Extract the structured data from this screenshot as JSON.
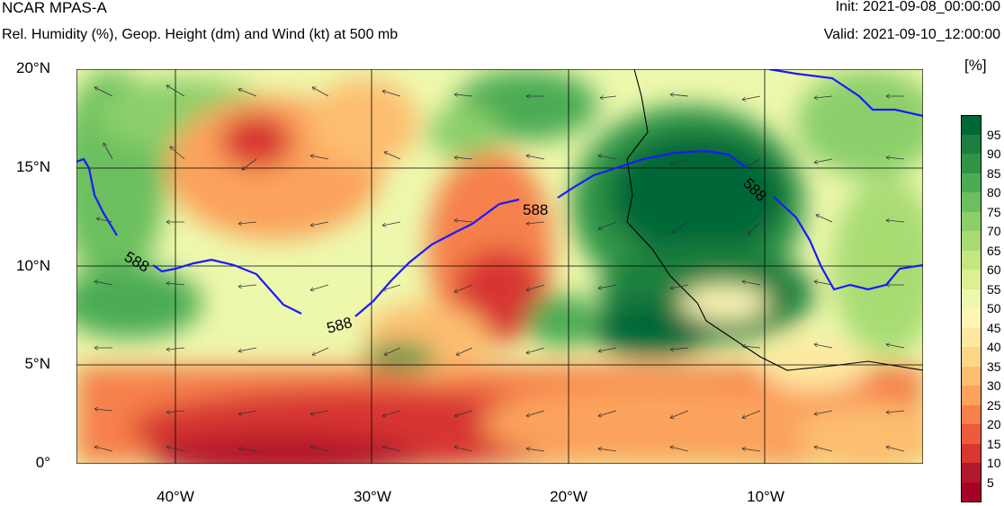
{
  "header": {
    "model": "NCAR MPAS-A",
    "description": "Rel. Humidity (%), Geop. Height (dm) and Wind (kt) at 500 mb",
    "init": "Init: 2021-09-08_00:00:00",
    "valid": "Valid: 2021-09-10_12:00:00"
  },
  "map": {
    "lat_labels": [
      "20°N",
      "15°N",
      "10°N",
      "5°N",
      "0°"
    ],
    "lon_labels": [
      "40°W",
      "30°W",
      "20°W",
      "10°W"
    ],
    "lat_range": [
      0,
      20
    ],
    "lon_range": [
      -45,
      -2
    ],
    "contour_value": "588",
    "contour_labels": [
      "588",
      "588",
      "588",
      "588"
    ],
    "contour_color": "#1a1aff"
  },
  "colorbar": {
    "unit": "[%]",
    "labels": [
      "95",
      "90",
      "85",
      "80",
      "75",
      "70",
      "65",
      "60",
      "55",
      "50",
      "45",
      "40",
      "35",
      "30",
      "25",
      "20",
      "15",
      "10",
      "5"
    ],
    "colors": [
      "#006837",
      "#1a7f3e",
      "#2f9447",
      "#4cac55",
      "#6cbf5f",
      "#8ccf6a",
      "#a8dc73",
      "#c3e67f",
      "#daf091",
      "#eef8ac",
      "#fdf6b5",
      "#fee8a0",
      "#fed688",
      "#fdbe6f",
      "#fba35c",
      "#f6804b",
      "#ec5b3c",
      "#d73631",
      "#b2182b",
      "#a50026"
    ]
  },
  "chart_data": {
    "type": "heatmap",
    "title": "Rel. Humidity (%), Geop. Height (dm) and Wind (kt) at 500 mb",
    "xlabel": "",
    "ylabel": "",
    "x_ticks": [
      "40°W",
      "30°W",
      "20°W",
      "10°W"
    ],
    "y_ticks": [
      "0°",
      "5°N",
      "10°N",
      "15°N",
      "20°N"
    ],
    "value_range": [
      0,
      100
    ],
    "contour_level_dm": 588
  }
}
